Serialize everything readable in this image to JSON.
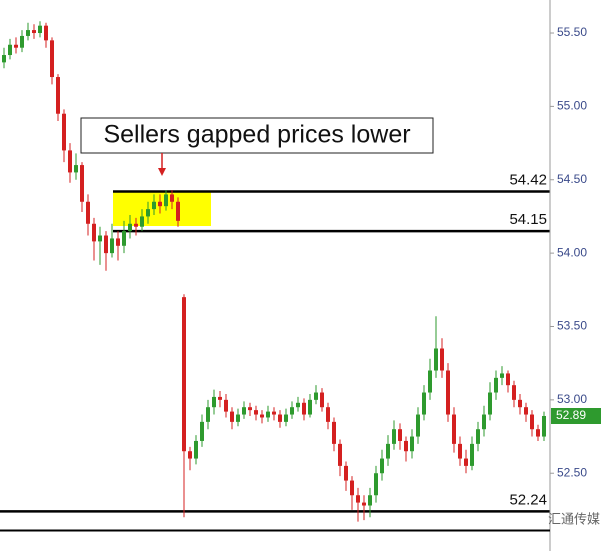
{
  "chart_data": {
    "type": "candlestick",
    "annotation": "Sellers gapped prices lower",
    "open": [
      55.3,
      55.35,
      55.42,
      55.4,
      55.48,
      55.52,
      55.5,
      55.55,
      55.45,
      55.2,
      54.95,
      54.7,
      54.55,
      54.6,
      54.35,
      54.2,
      54.08,
      54.12,
      54.0,
      54.1,
      54.05,
      54.15,
      54.2,
      54.18,
      54.25,
      54.3,
      54.35,
      54.32,
      54.4,
      54.35,
      53.7,
      52.65,
      52.6,
      52.72,
      52.85,
      52.95,
      53.02,
      53.0,
      52.92,
      52.85,
      52.9,
      52.95,
      52.93,
      52.9,
      52.88,
      52.92,
      52.9,
      52.85,
      52.9,
      52.95,
      52.98,
      52.9,
      53.0,
      53.05,
      52.95,
      52.85,
      52.7,
      52.55,
      52.45,
      52.35,
      52.3,
      52.28,
      52.35,
      52.5,
      52.6,
      52.7,
      52.8,
      52.72,
      52.65,
      52.75,
      52.9,
      53.05,
      53.2,
      53.35,
      53.2,
      52.9,
      52.7,
      52.6,
      52.55,
      52.7,
      52.8,
      52.9,
      53.05,
      53.15,
      53.18,
      53.1,
      53.0,
      52.95,
      52.9,
      52.8,
      52.75
    ],
    "high": [
      55.4,
      55.46,
      55.47,
      55.52,
      55.57,
      55.56,
      55.58,
      55.57,
      55.47,
      55.22,
      54.98,
      54.75,
      54.68,
      54.62,
      54.4,
      54.24,
      54.18,
      54.15,
      54.2,
      54.15,
      54.22,
      54.26,
      54.24,
      54.3,
      54.35,
      54.4,
      54.4,
      54.43,
      54.43,
      54.38,
      53.72,
      52.68,
      52.76,
      52.9,
      53.0,
      53.07,
      53.06,
      53.04,
      52.95,
      52.94,
      52.99,
      52.98,
      52.96,
      52.93,
      52.96,
      52.95,
      52.93,
      52.94,
      52.99,
      53.02,
      53.01,
      53.04,
      53.1,
      53.08,
      52.98,
      52.88,
      52.73,
      52.58,
      52.48,
      52.4,
      52.35,
      52.4,
      52.55,
      52.66,
      52.76,
      52.86,
      52.84,
      52.75,
      52.8,
      52.95,
      53.1,
      53.28,
      53.57,
      53.42,
      53.25,
      52.95,
      52.75,
      52.66,
      52.75,
      52.85,
      52.96,
      53.12,
      53.2,
      53.23,
      53.2,
      53.13,
      53.04,
      52.98,
      52.93,
      52.83,
      52.92
    ],
    "low": [
      55.26,
      55.32,
      55.36,
      55.37,
      55.45,
      55.46,
      55.47,
      55.4,
      55.15,
      54.9,
      54.62,
      54.48,
      54.5,
      54.28,
      54.12,
      53.95,
      53.92,
      53.88,
      53.97,
      53.95,
      54.0,
      54.1,
      54.12,
      54.15,
      54.2,
      54.26,
      54.27,
      54.29,
      54.3,
      54.18,
      52.2,
      52.52,
      52.56,
      52.68,
      52.8,
      52.9,
      52.95,
      52.88,
      52.8,
      52.82,
      52.87,
      52.89,
      52.86,
      52.84,
      52.85,
      52.86,
      52.81,
      52.82,
      52.87,
      52.92,
      52.86,
      52.88,
      52.97,
      52.92,
      52.8,
      52.65,
      52.48,
      52.38,
      52.25,
      52.17,
      52.18,
      52.2,
      52.3,
      52.45,
      52.55,
      52.66,
      52.66,
      52.58,
      52.6,
      52.7,
      52.86,
      53.0,
      53.15,
      53.15,
      52.85,
      52.64,
      52.55,
      52.5,
      52.52,
      52.65,
      52.75,
      52.86,
      53.0,
      53.1,
      53.05,
      52.95,
      52.9,
      52.85,
      52.75,
      52.72,
      52.72
    ],
    "close": [
      55.35,
      55.42,
      55.4,
      55.48,
      55.52,
      55.5,
      55.55,
      55.45,
      55.2,
      54.95,
      54.7,
      54.55,
      54.6,
      54.35,
      54.2,
      54.08,
      54.12,
      54.0,
      54.1,
      54.05,
      54.15,
      54.2,
      54.18,
      54.25,
      54.3,
      54.35,
      54.32,
      54.4,
      54.35,
      54.22,
      52.65,
      52.6,
      52.72,
      52.85,
      52.95,
      53.02,
      53.0,
      52.92,
      52.85,
      52.9,
      52.95,
      52.93,
      52.9,
      52.88,
      52.92,
      52.9,
      52.85,
      52.9,
      52.95,
      52.98,
      52.9,
      53.0,
      53.05,
      52.95,
      52.85,
      52.7,
      52.55,
      52.45,
      52.35,
      52.3,
      52.28,
      52.35,
      52.5,
      52.6,
      52.7,
      52.8,
      52.72,
      52.65,
      52.75,
      52.9,
      53.05,
      53.2,
      53.35,
      53.2,
      52.9,
      52.7,
      52.6,
      52.55,
      52.7,
      52.8,
      52.9,
      53.05,
      53.15,
      53.18,
      53.1,
      53.0,
      52.95,
      52.9,
      52.8,
      52.75,
      52.89
    ],
    "up_color": "#2e9a2e",
    "down_color": "#d42020",
    "ylim": [
      51.97,
      55.725
    ],
    "yticks": [
      {
        "value": 52.5,
        "label": "52.50"
      },
      {
        "value": 53,
        "label": "53.00"
      },
      {
        "value": 53.5,
        "label": "53.50"
      },
      {
        "value": 54,
        "label": "54.00"
      },
      {
        "value": 54.5,
        "label": "54.50"
      },
      {
        "value": 55,
        "label": "55.00"
      },
      {
        "value": 55.5,
        "label": "55.50"
      }
    ],
    "levels": [
      54.42,
      54.15,
      52.24
    ],
    "extra_lines": [
      52.11
    ],
    "last_price": 52.89,
    "watermark": "汇通传媒"
  }
}
